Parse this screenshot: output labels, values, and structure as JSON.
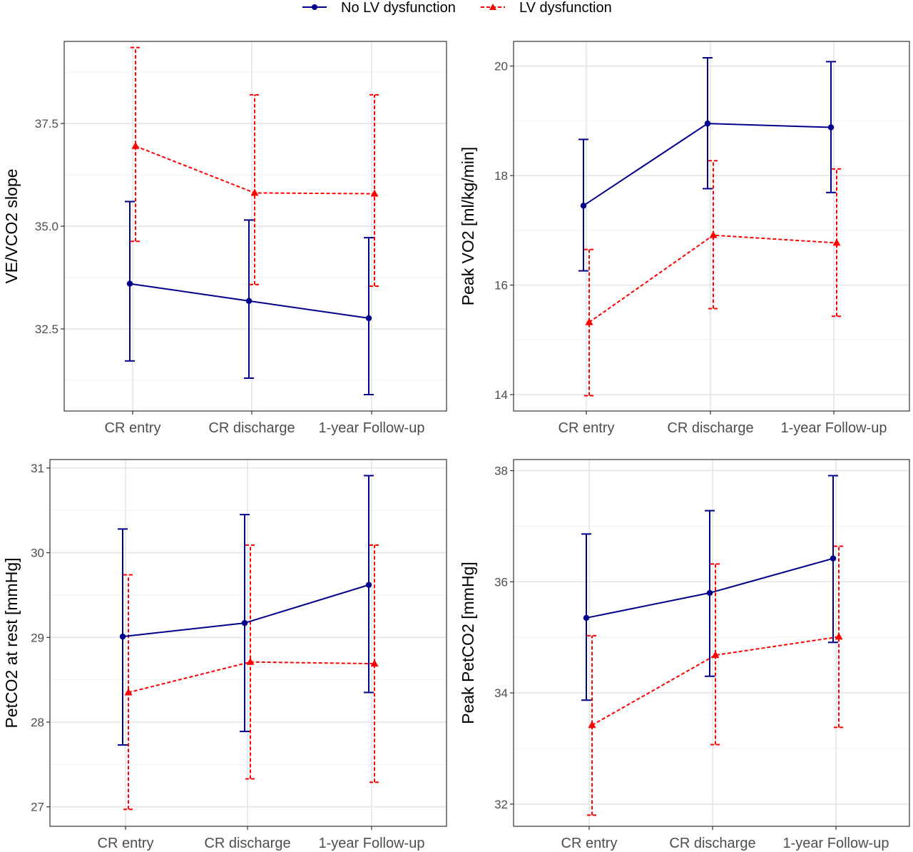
{
  "legend": {
    "items": [
      {
        "label": "No LV dysfunction",
        "color": "#00008B",
        "dash": "solid",
        "marker": "circle"
      },
      {
        "label": "LV dysfunction",
        "color": "#FF0000",
        "dash": "dashed",
        "marker": "triangle"
      }
    ],
    "position": "top"
  },
  "chart_data": [
    {
      "type": "line",
      "title": "",
      "xlabel": "",
      "ylabel": "VE/VCO2 slope",
      "categories": [
        "CR entry",
        "CR discharge",
        "1-year Follow-up"
      ],
      "ylim": [
        30.5,
        39.5
      ],
      "yticks": [
        32.5,
        35.0,
        37.5
      ],
      "ytick_labels": [
        "32.5",
        "35.0",
        "37.5"
      ],
      "grid": true,
      "series": [
        {
          "name": "No LV dysfunction",
          "color": "#00008B",
          "dash": "solid",
          "marker": "circle",
          "values": [
            33.6,
            33.18,
            32.76
          ],
          "lower": [
            31.72,
            31.3,
            30.9
          ],
          "upper": [
            35.6,
            35.15,
            34.72
          ]
        },
        {
          "name": "LV dysfunction",
          "color": "#FF0000",
          "dash": "dashed",
          "marker": "triangle",
          "values": [
            36.95,
            35.81,
            35.79
          ],
          "lower": [
            34.63,
            33.58,
            33.54
          ],
          "upper": [
            39.35,
            38.2,
            38.2
          ]
        }
      ]
    },
    {
      "type": "line",
      "title": "",
      "xlabel": "",
      "ylabel": "Peak VO2 [ml/kg/min]",
      "categories": [
        "CR entry",
        "CR discharge",
        "1-year Follow-up"
      ],
      "ylim": [
        13.7,
        20.45
      ],
      "yticks": [
        14,
        16,
        18,
        20
      ],
      "ytick_labels": [
        "14",
        "16",
        "18",
        "20"
      ],
      "grid": true,
      "series": [
        {
          "name": "No LV dysfunction",
          "color": "#00008B",
          "dash": "solid",
          "marker": "circle",
          "values": [
            17.45,
            18.95,
            18.88
          ],
          "lower": [
            16.26,
            17.76,
            17.69
          ],
          "upper": [
            18.66,
            20.15,
            20.08
          ]
        },
        {
          "name": "LV dysfunction",
          "color": "#FF0000",
          "dash": "dashed",
          "marker": "triangle",
          "values": [
            15.32,
            16.91,
            16.77
          ],
          "lower": [
            13.98,
            15.57,
            15.43
          ],
          "upper": [
            16.65,
            18.27,
            18.12
          ]
        }
      ]
    },
    {
      "type": "line",
      "title": "",
      "xlabel": "",
      "ylabel": "PetCO2 at rest [mmHg]",
      "categories": [
        "CR entry",
        "CR discharge",
        "1-year Follow-up"
      ],
      "ylim": [
        26.77,
        31.1
      ],
      "yticks": [
        27,
        28,
        29,
        30,
        31
      ],
      "ytick_labels": [
        "27",
        "28",
        "29",
        "30",
        "31"
      ],
      "grid": true,
      "series": [
        {
          "name": "No LV dysfunction",
          "color": "#00008B",
          "dash": "solid",
          "marker": "circle",
          "values": [
            29.01,
            29.17,
            29.62
          ],
          "lower": [
            27.73,
            27.89,
            28.35
          ],
          "upper": [
            30.28,
            30.45,
            30.91
          ]
        },
        {
          "name": "LV dysfunction",
          "color": "#FF0000",
          "dash": "dashed",
          "marker": "triangle",
          "values": [
            28.35,
            28.71,
            28.69
          ],
          "lower": [
            26.97,
            27.33,
            27.29
          ],
          "upper": [
            29.74,
            30.09,
            30.09
          ]
        }
      ]
    },
    {
      "type": "line",
      "title": "",
      "xlabel": "",
      "ylabel": "Peak PetCO2 [mmHg]",
      "categories": [
        "CR entry",
        "CR discharge",
        "1-year Follow-up"
      ],
      "ylim": [
        31.6,
        38.2
      ],
      "yticks": [
        32,
        34,
        36,
        38
      ],
      "ytick_labels": [
        "32",
        "34",
        "36",
        "38"
      ],
      "grid": true,
      "series": [
        {
          "name": "No LV dysfunction",
          "color": "#00008B",
          "dash": "solid",
          "marker": "circle",
          "values": [
            35.35,
            35.8,
            36.42
          ],
          "lower": [
            33.87,
            34.3,
            34.91
          ],
          "upper": [
            36.86,
            37.28,
            37.91
          ]
        },
        {
          "name": "LV dysfunction",
          "color": "#FF0000",
          "dash": "dashed",
          "marker": "triangle",
          "values": [
            33.42,
            34.68,
            35.01
          ],
          "lower": [
            31.8,
            33.07,
            33.38
          ],
          "upper": [
            35.03,
            36.32,
            36.64
          ]
        }
      ]
    }
  ]
}
